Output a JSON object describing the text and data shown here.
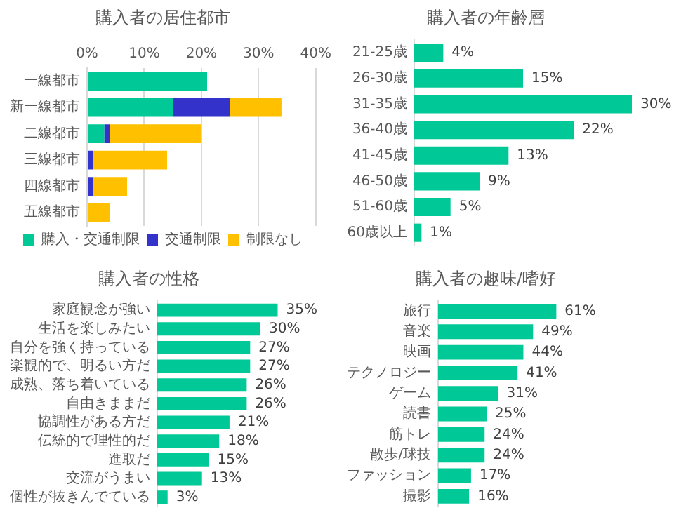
{
  "chart_data": [
    {
      "type": "bar",
      "title": "購入者の居住都市",
      "orientation": "horizontal",
      "stacked": true,
      "categories": [
        "一線都市",
        "新一線都市",
        "二線都市",
        "三線都市",
        "四線都市",
        "五線都市"
      ],
      "series": [
        {
          "name": "購入・交通制限",
          "color": "#00c896",
          "values": [
            21,
            15,
            3,
            0,
            0,
            0
          ]
        },
        {
          "name": "交通制限",
          "color": "#3333cc",
          "values": [
            0,
            10,
            1,
            1,
            1,
            0
          ]
        },
        {
          "name": "制限なし",
          "color": "#ffc000",
          "values": [
            0,
            9,
            16,
            13,
            6,
            4
          ]
        }
      ],
      "xlim": [
        0,
        40
      ],
      "xticks": [
        {
          "value": 0,
          "label": "0%"
        },
        {
          "value": 10,
          "label": "10%"
        },
        {
          "value": 20,
          "label": "20%"
        },
        {
          "value": 30,
          "label": "30%"
        },
        {
          "value": 40,
          "label": "40%"
        }
      ],
      "grid": "x",
      "legend": "bottom"
    },
    {
      "type": "bar",
      "title": "購入者の年齢層",
      "orientation": "horizontal",
      "categories": [
        "21-25歳",
        "26-30歳",
        "31-35歳",
        "36-40歳",
        "41-45歳",
        "46-50歳",
        "51-60歳",
        "60歳以上"
      ],
      "color": "#00c896",
      "values": [
        4,
        15,
        30,
        22,
        13,
        9,
        5,
        1
      ],
      "value_labels": [
        "4%",
        "15%",
        "30%",
        "22%",
        "13%",
        "9%",
        "5%",
        "1%"
      ],
      "tick_labels": "y"
    },
    {
      "type": "bar",
      "title": "購入者の性格",
      "orientation": "horizontal",
      "categories": [
        "家庭観念が強い",
        "生活を楽しみたい",
        "自分を強く持っている",
        "楽観的で、明るい方だ",
        "成熟、落ち着いている",
        "自由きままだ",
        "協調性がある方だ",
        "伝統的で理性的だ",
        "進取だ",
        "交流がうまい",
        "個性が抜きんでている"
      ],
      "color": "#00c896",
      "values": [
        35,
        30,
        27,
        27,
        26,
        26,
        21,
        18,
        15,
        13,
        3
      ],
      "value_labels": [
        "35%",
        "30%",
        "27%",
        "27%",
        "26%",
        "26%",
        "21%",
        "18%",
        "15%",
        "13%",
        "3%"
      ],
      "tick_labels": "y"
    },
    {
      "type": "bar",
      "title": "購入者の趣味/嗜好",
      "orientation": "horizontal",
      "categories": [
        "旅行",
        "音楽",
        "映画",
        "テクノロジー",
        "ゲーム",
        "読書",
        "筋トレ",
        "散歩/球技",
        "ファッション",
        "撮影"
      ],
      "color": "#00c896",
      "values": [
        61,
        49,
        44,
        41,
        31,
        25,
        24,
        24,
        17,
        16
      ],
      "value_labels": [
        "61%",
        "49%",
        "44%",
        "41%",
        "31%",
        "25%",
        "24%",
        "24%",
        "17%",
        "16%"
      ],
      "tick_labels": "y"
    }
  ]
}
